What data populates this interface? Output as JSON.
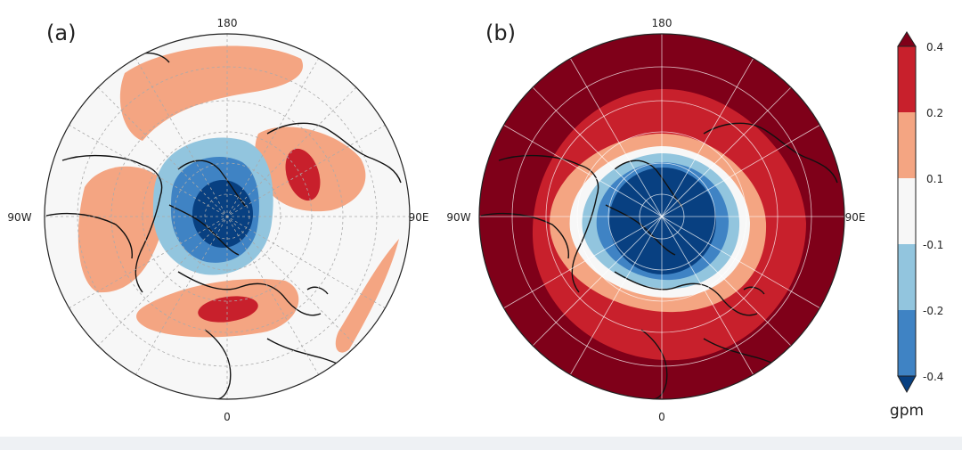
{
  "panels": [
    {
      "label": "(a)",
      "lon_labels": {
        "top": "180",
        "left": "90W",
        "right": "90E",
        "bottom": "0"
      }
    },
    {
      "label": "(b)",
      "lon_labels": {
        "top": "180",
        "left": "90W",
        "right": "90E",
        "bottom": "0"
      }
    }
  ],
  "colorbar": {
    "unit": "gpm",
    "tick_labels": [
      "0.4",
      "0.2",
      "0.1",
      "-0.1",
      "-0.2",
      "-0.4"
    ],
    "colors": {
      "pos_strong": "#7f0019",
      "pos_mid": "#c8202c",
      "pos_weak": "#f4a582",
      "neutral": "#f7f7f7",
      "neg_weak": "#92c5de",
      "neg_mid": "#3f83c4",
      "neg_strong": "#084081"
    }
  }
}
